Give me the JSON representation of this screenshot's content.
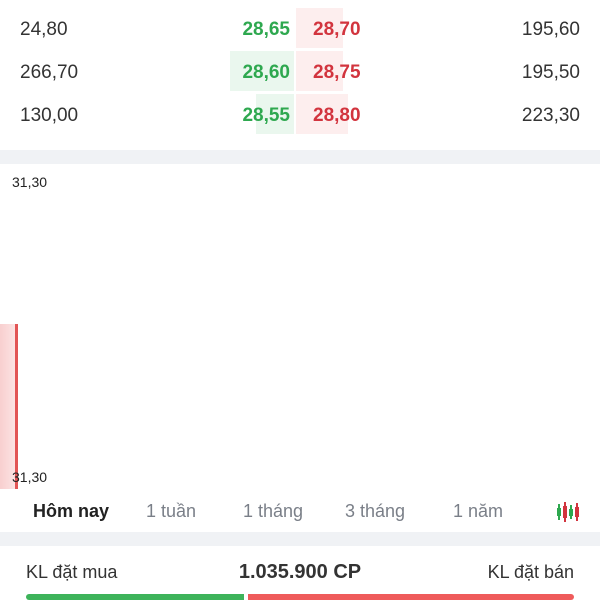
{
  "order_book": {
    "rows": [
      {
        "bid_volume": "24,80",
        "bid_price": "28,65",
        "ask_price": "28,70",
        "ask_volume": "195,60",
        "bid_bar": 0.0,
        "ask_bar": 0.9
      },
      {
        "bid_volume": "266,70",
        "bid_price": "28,60",
        "ask_price": "28,75",
        "ask_volume": "195,50",
        "bid_bar": 1.0,
        "ask_bar": 0.9
      },
      {
        "bid_volume": "130,00",
        "bid_price": "28,55",
        "ask_price": "28,80",
        "ask_volume": "223,30",
        "bid_bar": 0.6,
        "ask_bar": 1.0
      }
    ]
  },
  "chart": {
    "price_top": "31,30",
    "price_bottom": "31,30"
  },
  "tabs": [
    {
      "label": "Hôm nay",
      "active": true
    },
    {
      "label": "1 tuần",
      "active": false
    },
    {
      "label": "1 tháng",
      "active": false
    },
    {
      "label": "3 tháng",
      "active": false
    },
    {
      "label": "1 năm",
      "active": false
    }
  ],
  "chart_type_icon": "candlestick-icon",
  "volume": {
    "buy_label": "KL đặt mua",
    "value": "1.035.900 CP",
    "sell_label": "KL đặt bán",
    "buy_ratio": 0.4
  },
  "colors": {
    "buy": "#2ea84f",
    "sell": "#d2343e"
  }
}
